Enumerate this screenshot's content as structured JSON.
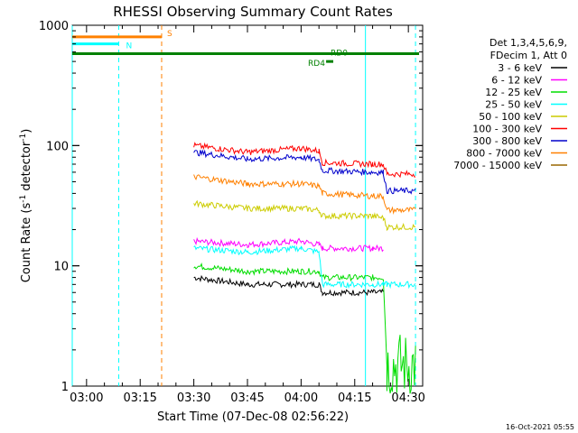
{
  "chart_data": {
    "type": "line",
    "title": "RHESSI Observing Summary Count Rates",
    "xlabel": "Start Time (07-Dec-08 02:56:22)",
    "ylabel_main": "Count Rate (s",
    "ylabel_sup1": "-1",
    "ylabel_mid": " detector",
    "ylabel_sup2": "-1",
    "ylabel_end": ")",
    "yscale": "log",
    "xlim": [
      "02:56",
      "04:34"
    ],
    "ylim": [
      1,
      1000
    ],
    "x_ticks": [
      "03:00",
      "03:15",
      "03:30",
      "03:45",
      "04:00",
      "04:15",
      "04:30"
    ],
    "y_ticks": [
      "1",
      "10",
      "100",
      "1000"
    ],
    "legend_header": [
      "Det 1,3,4,5,6,9,",
      "FDecim 1, Att 0"
    ],
    "legend_position": "right",
    "series": [
      {
        "name": "3 - 6 keV",
        "color": "#000000",
        "x": [
          "03:30",
          "03:45",
          "04:00",
          "04:05",
          "04:06",
          "04:20",
          "04:23"
        ],
        "values": [
          8,
          7,
          7,
          7,
          6,
          6,
          6
        ]
      },
      {
        "name": "6 - 12 keV",
        "color": "#ff00ff",
        "x": [
          "03:30",
          "03:45",
          "04:00",
          "04:05",
          "04:06",
          "04:20",
          "04:23"
        ],
        "values": [
          16,
          15,
          16,
          15,
          14,
          14,
          14
        ]
      },
      {
        "name": "12 - 25 keV",
        "color": "#00dd00",
        "x": [
          "03:30",
          "03:45",
          "04:00",
          "04:05",
          "04:06",
          "04:20",
          "04:23",
          "04:24",
          "04:32"
        ],
        "values": [
          10,
          9,
          9,
          9,
          8,
          8,
          8,
          1.5,
          1.5
        ]
      },
      {
        "name": "25 - 50 keV",
        "color": "#00ffff",
        "x": [
          "03:30",
          "03:45",
          "04:00",
          "04:05",
          "04:06",
          "04:20",
          "04:23",
          "04:24",
          "04:32"
        ],
        "values": [
          14,
          13,
          14,
          13,
          7,
          7,
          7,
          7,
          7
        ]
      },
      {
        "name": "50 - 100 keV",
        "color": "#cccc00",
        "x": [
          "03:30",
          "03:45",
          "04:00",
          "04:05",
          "04:06",
          "04:20",
          "04:23",
          "04:24",
          "04:32"
        ],
        "values": [
          33,
          30,
          30,
          29,
          26,
          26,
          25,
          21,
          21
        ]
      },
      {
        "name": "100 - 300 keV",
        "color": "#ff0000",
        "x": [
          "03:30",
          "03:45",
          "04:00",
          "04:05",
          "04:06",
          "04:20",
          "04:23",
          "04:24",
          "04:32"
        ],
        "values": [
          100,
          88,
          95,
          90,
          72,
          70,
          70,
          58,
          58
        ]
      },
      {
        "name": "300 - 800 keV",
        "color": "#0000cc",
        "x": [
          "03:30",
          "03:45",
          "04:00",
          "04:05",
          "04:06",
          "04:20",
          "04:23",
          "04:24",
          "04:32"
        ],
        "values": [
          88,
          77,
          80,
          76,
          62,
          60,
          60,
          42,
          42
        ]
      },
      {
        "name": "800 - 7000 keV",
        "color": "#ff8000",
        "x": [
          "03:30",
          "03:45",
          "04:00",
          "04:05",
          "04:06",
          "04:20",
          "04:23",
          "04:24",
          "04:32"
        ],
        "values": [
          55,
          48,
          48,
          46,
          40,
          38,
          38,
          29,
          29
        ]
      },
      {
        "name": "7000 - 15000 keV",
        "color": "#996600",
        "x": [],
        "values": []
      }
    ],
    "annotations": [
      {
        "label": "S",
        "color": "#ff8000",
        "level": 800,
        "x_range": [
          "02:56",
          "03:21"
        ]
      },
      {
        "label": "N",
        "color": "#00ffff",
        "level": 700,
        "x_range": [
          "02:56",
          "03:09"
        ]
      },
      {
        "label": "RD0",
        "color": "#008000",
        "level": 580,
        "x_range": [
          "02:56",
          "04:33"
        ]
      },
      {
        "label": "RD4",
        "color": "#008000",
        "level": 500,
        "x_range": [
          "04:07",
          "04:09"
        ]
      }
    ],
    "vertical_lines": [
      {
        "color": "#00ffff",
        "style": "solid",
        "x": "02:56"
      },
      {
        "color": "#00ffff",
        "style": "dashed",
        "x": "03:09"
      },
      {
        "color": "#ff8000",
        "style": "dashed",
        "x": "03:21"
      },
      {
        "color": "#00ffff",
        "style": "solid",
        "x": "04:18"
      },
      {
        "color": "#00ffff",
        "style": "dashed",
        "x": "04:32"
      }
    ]
  },
  "footer": {
    "timestamp": "16-Oct-2021 05:55"
  }
}
